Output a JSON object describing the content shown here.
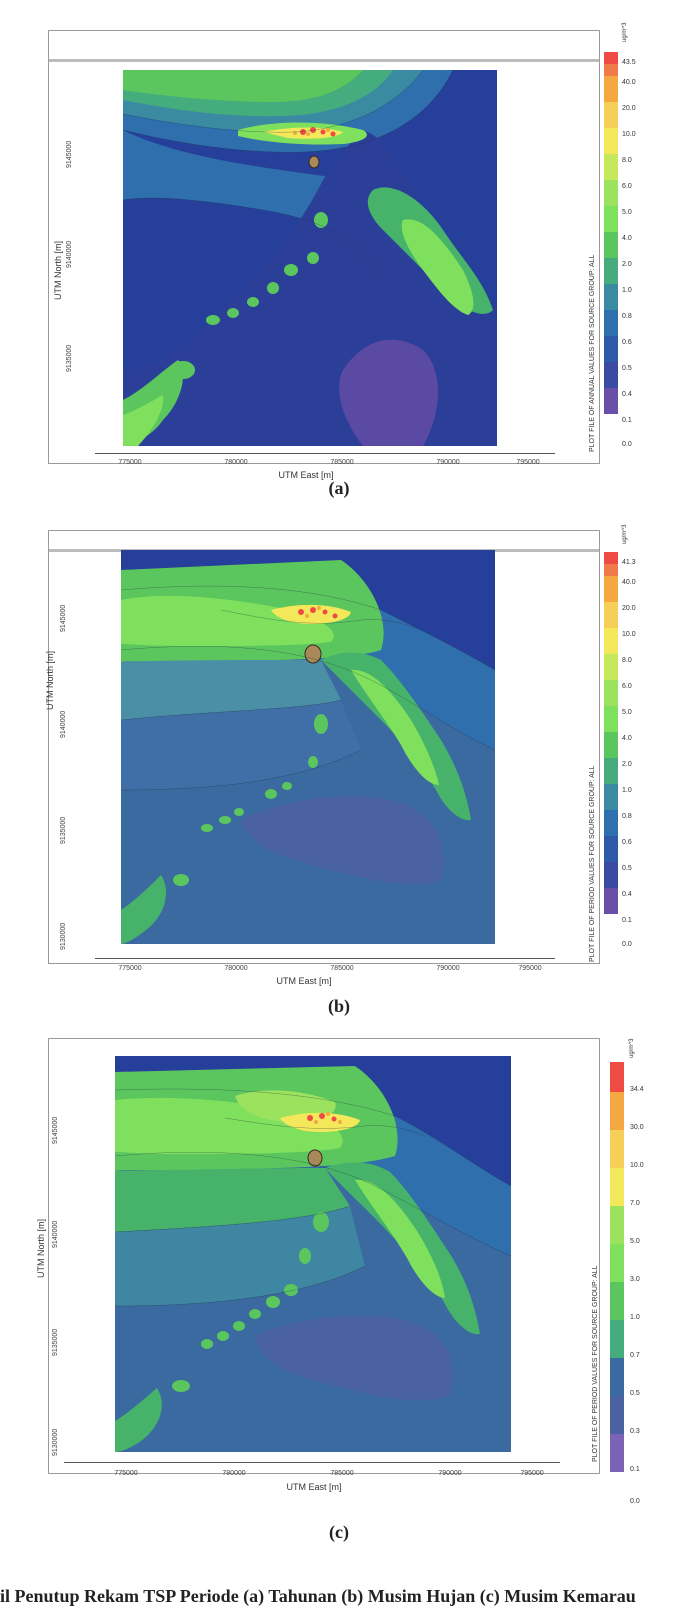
{
  "panels": [
    {
      "caption": "(a)",
      "xlabel": "UTM East [m]",
      "ylabel": "UTM North [m]",
      "xticks": [
        "775000",
        "780000",
        "785000",
        "790000",
        "795000"
      ],
      "yticks": [
        "9145000",
        "9140000",
        "9135000"
      ],
      "units": "ug/m^3",
      "legend_title": "PLOT FILE OF ANNUAL VALUES FOR SOURCE GROUP: ALL",
      "legend_levels": [
        "43.5",
        "40.0",
        "20.0",
        "10.0",
        "8.0",
        "6.0",
        "5.0",
        "4.0",
        "2.0",
        "1.0",
        "0.8",
        "0.6",
        "0.5",
        "0.4",
        "0.1",
        "0.0"
      ]
    },
    {
      "caption": "(b)",
      "xlabel": "UTM East [m]",
      "ylabel": "UTM North [m]",
      "xticks": [
        "775000",
        "780000",
        "785000",
        "790000",
        "795000"
      ],
      "yticks": [
        "9145000",
        "9140000",
        "9135000",
        "9130000"
      ],
      "units": "ug/m^3",
      "legend_title": "PLOT FILE OF PERIOD VALUES FOR SOURCE GROUP: ALL",
      "legend_levels": [
        "41.3",
        "40.0",
        "20.0",
        "10.0",
        "8.0",
        "6.0",
        "5.0",
        "4.0",
        "2.0",
        "1.0",
        "0.8",
        "0.6",
        "0.5",
        "0.4",
        "0.1",
        "0.0"
      ]
    },
    {
      "caption": "(c)",
      "xlabel": "UTM East [m]",
      "ylabel": "UTM North [m]",
      "xticks": [
        "775000",
        "780000",
        "785000",
        "790000",
        "795000"
      ],
      "yticks": [
        "9145000",
        "9140000",
        "9135000",
        "9130000"
      ],
      "units": "ug/m^3",
      "legend_title": "PLOT FILE OF PERIOD VALUES FOR SOURCE GROUP: ALL",
      "legend_levels": [
        "34.4",
        "30.0",
        "10.0",
        "7.0",
        "5.0",
        "3.0",
        "1.0",
        "0.7",
        "0.5",
        "0.3",
        "0.1",
        "0.0"
      ]
    }
  ],
  "footer_text": "il Penutup Rekam TSP Periode (a) Tahunan (b) Musim Hujan (c) Musim Kemarau",
  "colors": {
    "deep_purple": "#6a4fa8",
    "indigo": "#3b4aa2",
    "blue": "#2e5aa8",
    "teal_blue": "#3a7a9c",
    "teal": "#3f9a88",
    "green": "#4fbf5a",
    "light_green": "#7ee05c",
    "yellow": "#f3e85a",
    "orange": "#f5a742",
    "red": "#ee4b45"
  }
}
